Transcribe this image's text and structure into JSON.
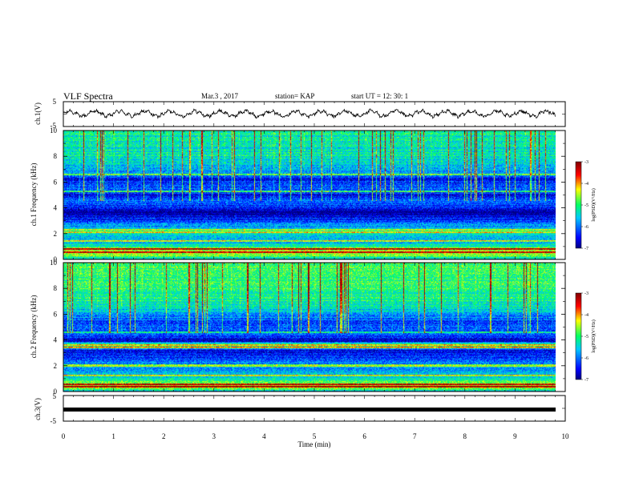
{
  "header": {
    "title": "VLF Spectra",
    "date": "Mar.3  , 2017",
    "station": "station= KAP",
    "start": "start  UT =   12: 30: 1"
  },
  "chart_data": [
    {
      "type": "line",
      "panel": "ch1-waveform",
      "ylabel": "ch.1(V)",
      "ylim": [
        -5,
        5
      ],
      "yticks": [
        "5",
        "-5"
      ],
      "x_range_min": [
        0,
        9.8
      ],
      "mean_level": 0.2,
      "oscillation_period_min": 0.5,
      "oscillation_amplitude": 1.0,
      "noise_amplitude": 0.6,
      "color": "#000000"
    },
    {
      "type": "heatmap",
      "panel": "ch1-spectrogram",
      "ylabel": "ch.1 Frequency (kHz)",
      "ylim": [
        0,
        10
      ],
      "yticks": [
        "0",
        "2",
        "4",
        "6",
        "8",
        "10"
      ],
      "x_range_min": [
        0,
        9.8
      ],
      "band_profile_khz": [
        [
          0.0,
          -5.6
        ],
        [
          0.3,
          -4.6
        ],
        [
          0.55,
          -4.4
        ],
        [
          0.8,
          -4.5
        ],
        [
          1.2,
          -5.6
        ],
        [
          1.7,
          -5.6
        ],
        [
          2.0,
          -5.2
        ],
        [
          2.5,
          -5.8
        ],
        [
          3.0,
          -6.2
        ],
        [
          3.3,
          -6.5
        ],
        [
          3.6,
          -6.9
        ],
        [
          4.0,
          -6.3
        ],
        [
          4.5,
          -6.1
        ],
        [
          5.0,
          -6.5
        ],
        [
          5.4,
          -6.0
        ],
        [
          5.8,
          -6.3
        ],
        [
          6.2,
          -6.5
        ],
        [
          6.8,
          -5.8
        ],
        [
          7.5,
          -5.4
        ],
        [
          8.5,
          -5.3
        ],
        [
          10.0,
          -5.3
        ]
      ],
      "lines_khz": [
        0.55,
        0.8,
        1.4,
        2.1,
        2.3,
        5.3,
        6.6
      ],
      "colorbar": {
        "label": "log(PSD)(V²/Hz)",
        "range": [
          -7,
          -3
        ],
        "ticks": [
          "-3",
          "-4",
          "-5",
          "-6",
          "-7"
        ]
      }
    },
    {
      "type": "heatmap",
      "panel": "ch2-spectrogram",
      "ylabel": "ch.2 Frequency (kHz)",
      "ylim": [
        0,
        10
      ],
      "yticks": [
        "0",
        "2",
        "4",
        "6",
        "8",
        "10"
      ],
      "x_range_min": [
        0,
        9.8
      ],
      "band_profile_khz": [
        [
          0.0,
          -5.6
        ],
        [
          0.4,
          -4.0
        ],
        [
          0.6,
          -4.6
        ],
        [
          1.0,
          -5.5
        ],
        [
          1.8,
          -5.8
        ],
        [
          2.4,
          -6.0
        ],
        [
          2.8,
          -6.5
        ],
        [
          3.2,
          -6.6
        ],
        [
          3.45,
          -5.1
        ],
        [
          3.7,
          -5.2
        ],
        [
          3.9,
          -6.8
        ],
        [
          4.3,
          -6.3
        ],
        [
          4.8,
          -6.1
        ],
        [
          5.3,
          -6.3
        ],
        [
          5.8,
          -5.9
        ],
        [
          6.3,
          -5.6
        ],
        [
          7.0,
          -5.2
        ],
        [
          8.0,
          -5.0
        ],
        [
          10.0,
          -4.9
        ]
      ],
      "lines_khz": [
        0.35,
        0.55,
        1.2,
        2.0,
        3.4,
        3.6,
        4.6
      ],
      "colorbar": {
        "label": "log(PSD)(V²/Hz)",
        "range": [
          -7,
          -3
        ],
        "ticks": [
          "-3",
          "-4",
          "-5",
          "-6",
          "-7"
        ]
      }
    },
    {
      "type": "line",
      "panel": "ch3-waveform",
      "ylabel": "ch.3(V)",
      "ylim": [
        -5,
        5
      ],
      "yticks": [
        "5",
        "-5"
      ],
      "x_range_min": [
        0,
        9.8
      ],
      "mean_level": 0.0,
      "color": "#000000"
    }
  ],
  "xaxis": {
    "label": "Time  (min)",
    "range": [
      0,
      10
    ],
    "ticks": [
      "0",
      "1",
      "2",
      "3",
      "4",
      "5",
      "6",
      "7",
      "8",
      "9",
      "10"
    ]
  },
  "colors": {
    "colormap": [
      "#000080",
      "#0000ff",
      "#00c8ff",
      "#00ff66",
      "#ffff00",
      "#ff0000",
      "#800000"
    ]
  }
}
